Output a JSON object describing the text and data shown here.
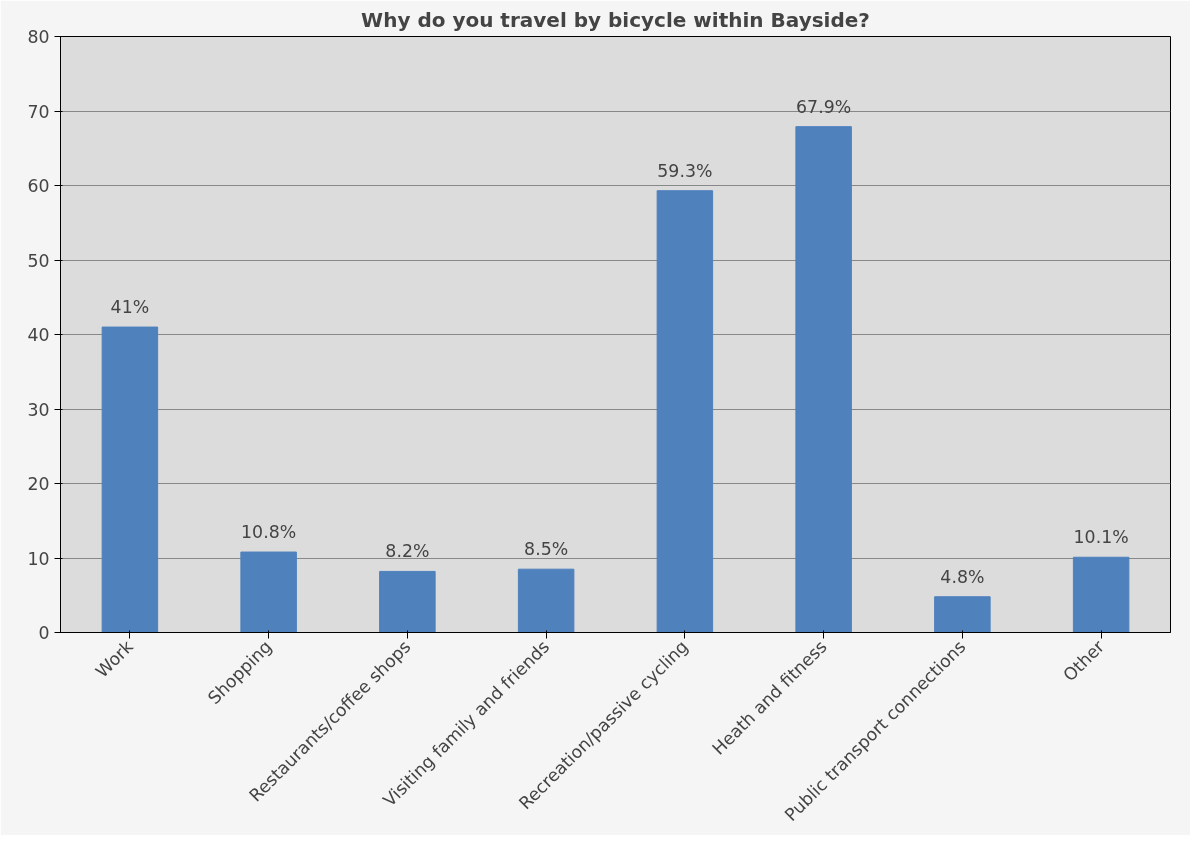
{
  "chart_data": {
    "type": "bar",
    "title": "Why do you travel by bicycle within Bayside?",
    "categories": [
      "Work",
      "Shopping",
      "Restaurants/coffee shops",
      "Visiting family and friends",
      "Recreation/passive cycling",
      "Heath and fitness",
      "Public transport connections",
      "Other"
    ],
    "values": [
      41,
      10.8,
      8.2,
      8.5,
      59.3,
      67.9,
      4.8,
      10.1
    ],
    "value_labels": [
      "41%",
      "10.8%",
      "8.2%",
      "8.5%",
      "59.3%",
      "67.9%",
      "4.8%",
      "10.1%"
    ],
    "color": "#4f81bd",
    "ylim": [
      0,
      80
    ],
    "yticks": [
      0,
      10,
      20,
      30,
      40,
      50,
      60,
      70,
      80
    ],
    "grid": "y"
  }
}
